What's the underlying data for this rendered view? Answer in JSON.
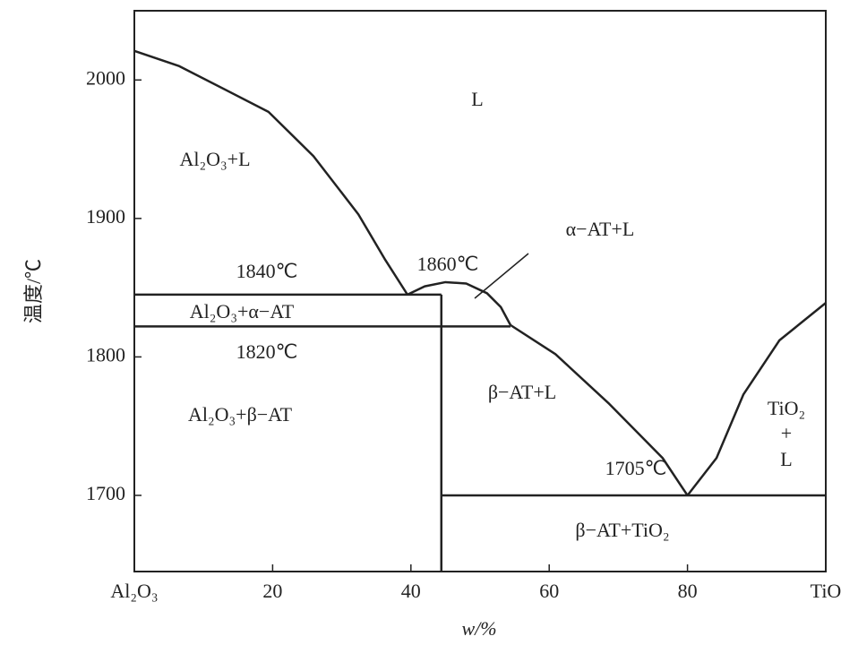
{
  "chart_data": {
    "type": "line",
    "x_label": "w/%",
    "y_label": "温度/℃",
    "xlim": [
      0,
      100
    ],
    "ylim": [
      1645,
      2050
    ],
    "xticks": [
      {
        "value": 0,
        "label": "Al₂O₃"
      },
      20,
      40,
      60,
      80,
      {
        "value": 100,
        "label": "TiO"
      }
    ],
    "yticks": [
      1700,
      1800,
      1900,
      2000
    ],
    "series": [
      {
        "color": "#222222",
        "x": [
          0,
          6.5,
          19.4,
          25.9,
          32.4,
          36.3,
          39.5
        ],
        "values": [
          2021,
          2010,
          1977,
          1945,
          1903,
          1870,
          1845
        ]
      },
      {
        "color": "#222222",
        "x": [
          39.5,
          42,
          45,
          48,
          51,
          53,
          54.4
        ],
        "values": [
          1845,
          1851,
          1854,
          1853,
          1846,
          1836,
          1823
        ]
      },
      {
        "color": "#222222",
        "x": [
          54.4,
          60.9,
          68.7,
          76.4,
          80
        ],
        "values": [
          1823,
          1802,
          1766,
          1727,
          1700
        ]
      },
      {
        "color": "#222222",
        "x": [
          80,
          84.2,
          88.1,
          93.3,
          100
        ],
        "values": [
          1700,
          1727,
          1773,
          1812,
          1839
        ]
      },
      {
        "color": "#222222",
        "x": [
          0,
          44.4
        ],
        "values": [
          1845,
          1845
        ]
      },
      {
        "color": "#222222",
        "x": [
          0,
          54.4
        ],
        "values": [
          1822,
          1822
        ]
      },
      {
        "color": "#222222",
        "x": [
          44.4,
          44.4
        ],
        "values": [
          1845,
          1645
        ]
      },
      {
        "color": "#222222",
        "x": [
          44.4,
          100
        ],
        "values": [
          1700,
          1700
        ]
      }
    ],
    "annotations": [
      "L",
      "Al₂O₃+L",
      "α−AT+L",
      "1840℃",
      "1860℃",
      "Al₂O₃+α−AT",
      "1820℃",
      "β−AT+L",
      "Al₂O₃+β−AT",
      "TiO₂",
      "+",
      "L",
      "1705℃",
      "β−AT+TiO₂"
    ]
  }
}
